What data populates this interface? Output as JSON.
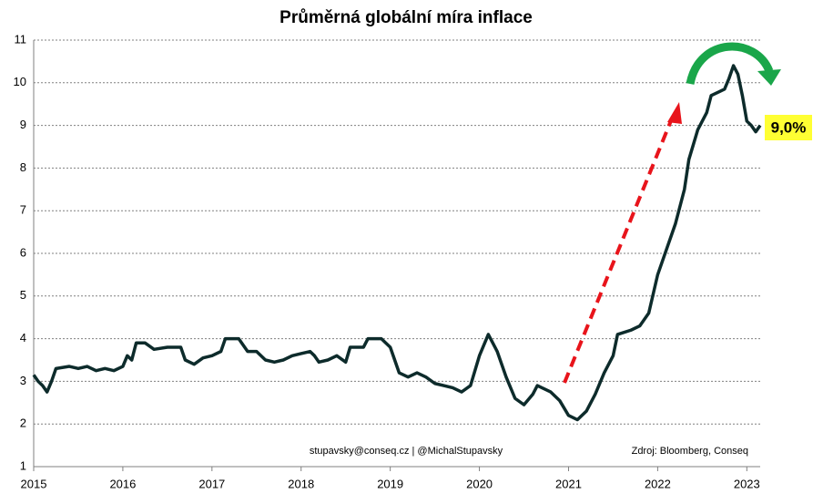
{
  "chart_data": {
    "type": "line",
    "title": "Průměrná globální míra inflace",
    "x": [
      2015.0,
      2015.05,
      2015.1,
      2015.15,
      2015.2,
      2015.25,
      2015.4,
      2015.5,
      2015.6,
      2015.7,
      2015.8,
      2015.9,
      2016.0,
      2016.05,
      2016.1,
      2016.15,
      2016.25,
      2016.35,
      2016.5,
      2016.65,
      2016.7,
      2016.8,
      2016.9,
      2017.0,
      2017.1,
      2017.15,
      2017.3,
      2017.4,
      2017.5,
      2017.6,
      2017.7,
      2017.8,
      2017.9,
      2018.0,
      2018.1,
      2018.15,
      2018.2,
      2018.3,
      2018.4,
      2018.5,
      2018.55,
      2018.7,
      2018.75,
      2018.9,
      2019.0,
      2019.05,
      2019.1,
      2019.2,
      2019.3,
      2019.4,
      2019.5,
      2019.6,
      2019.7,
      2019.8,
      2019.9,
      2020.0,
      2020.1,
      2020.2,
      2020.3,
      2020.4,
      2020.5,
      2020.6,
      2020.65,
      2020.8,
      2020.9,
      2021.0,
      2021.1,
      2021.2,
      2021.3,
      2021.4,
      2021.5,
      2021.55,
      2021.7,
      2021.8,
      2021.9,
      2022.0,
      2022.1,
      2022.2,
      2022.3,
      2022.35,
      2022.45,
      2022.55,
      2022.6,
      2022.7,
      2022.75,
      2022.8,
      2022.85,
      2022.9,
      2022.95,
      2023.0,
      2023.05,
      2023.1,
      2023.15
    ],
    "series": [
      {
        "name": "Průměrná globální míra inflace",
        "color": "#0d2b2b",
        "values": [
          3.15,
          3.0,
          2.9,
          2.75,
          3.0,
          3.3,
          3.35,
          3.3,
          3.35,
          3.25,
          3.3,
          3.25,
          3.35,
          3.6,
          3.5,
          3.9,
          3.9,
          3.75,
          3.8,
          3.8,
          3.5,
          3.4,
          3.55,
          3.6,
          3.7,
          4.0,
          4.0,
          3.7,
          3.7,
          3.5,
          3.45,
          3.5,
          3.6,
          3.65,
          3.7,
          3.6,
          3.45,
          3.5,
          3.6,
          3.45,
          3.8,
          3.8,
          4.0,
          4.0,
          3.8,
          3.5,
          3.2,
          3.1,
          3.2,
          3.1,
          2.95,
          2.9,
          2.85,
          2.75,
          2.9,
          3.6,
          4.1,
          3.7,
          3.1,
          2.6,
          2.45,
          2.7,
          2.9,
          2.75,
          2.55,
          2.2,
          2.1,
          2.3,
          2.7,
          3.2,
          3.6,
          4.1,
          4.2,
          4.3,
          4.6,
          5.5,
          6.1,
          6.7,
          7.5,
          8.2,
          8.9,
          9.3,
          9.7,
          9.8,
          9.85,
          10.1,
          10.4,
          10.2,
          9.7,
          9.1,
          9.0,
          8.85,
          9.0
        ]
      }
    ],
    "xlim": [
      2015,
      2023.15
    ],
    "xticks": [
      2015,
      2016,
      2017,
      2018,
      2019,
      2020,
      2021,
      2022,
      2023
    ],
    "ylim": [
      1,
      11
    ],
    "yticks": [
      1,
      2,
      3,
      4,
      5,
      6,
      7,
      8,
      9,
      10,
      11
    ],
    "grid": true,
    "annotations": [
      "9,0%",
      "stupavsky@conseq.cz  |  @MichalStupavsky",
      "Zdroj: Bloomberg, Conseq"
    ]
  }
}
